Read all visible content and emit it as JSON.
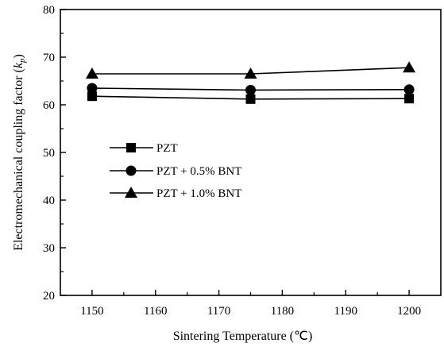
{
  "chart_data": {
    "type": "line",
    "xlabel": "Sintering Temperature (℃)",
    "ylabel_main": "Electromechanical coupling factor (",
    "ylabel_sym": "k",
    "ylabel_sub": "p",
    "ylabel_end": ")",
    "xlim": [
      1145,
      1205
    ],
    "ylim": [
      20,
      80
    ],
    "x": [
      1150,
      1175,
      1200
    ],
    "x_ticks": [
      1150,
      1160,
      1170,
      1180,
      1190,
      1200
    ],
    "y_ticks": [
      20,
      30,
      40,
      50,
      60,
      70,
      80
    ],
    "grid": false,
    "legend_position": "center-left",
    "series": [
      {
        "name": "PZT",
        "marker": "square",
        "values": [
          61.8,
          61.2,
          61.3
        ]
      },
      {
        "name": "PZT + 0.5% BNT",
        "marker": "circle",
        "values": [
          63.5,
          63.1,
          63.2
        ]
      },
      {
        "name": "PZT + 1.0% BNT",
        "marker": "triangle",
        "values": [
          66.5,
          66.5,
          67.8
        ]
      }
    ],
    "colors": {
      "line": "#000000",
      "background": "#ffffff"
    }
  }
}
